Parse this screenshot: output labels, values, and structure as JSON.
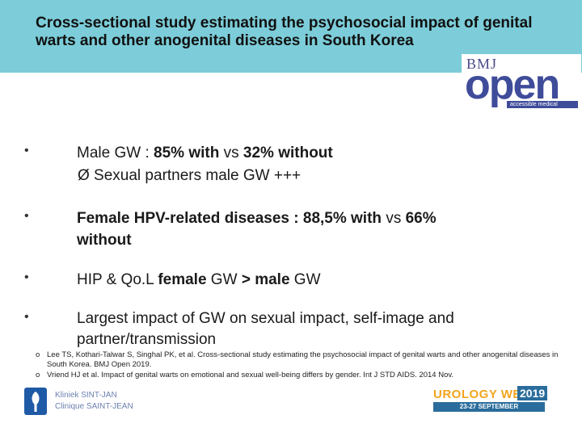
{
  "title": "Cross-sectional study estimating the psychosocial impact of genital\nwarts and other anogenital diseases in South Korea",
  "logo_bmj": {
    "top": "BMJ",
    "main": "open",
    "tagline": "accessible medical research"
  },
  "bullets": [
    {
      "pre": "Male GW : ",
      "b1": "85%",
      "mid1": " with ",
      "vs": "vs",
      "b2": " 32%",
      "mid2": " without",
      "tail": ""
    },
    {
      "sub": "Ø  Sexual partners male GW +++"
    },
    {
      "pre": "Female HPV-related diseases : ",
      "b1": "88,5%",
      "mid1": " with ",
      "vs": "vs",
      "b2": " 66%",
      "mid2": "",
      "line2": "without"
    },
    {
      "text_a": "HIP & Qo.L ",
      "bold_a": "female",
      "text_b": " GW ",
      "bold_b": ">",
      "text_c": " ",
      "bold_c": "male",
      "text_d": " GW"
    },
    {
      "line1": "Largest impact of GW on sexual impact, self-image and",
      "line2": "partner/transmission"
    }
  ],
  "bullet_symbol": "•",
  "references": [
    {
      "marker": "o",
      "text": "Lee TS, Kothari-Talwar S, Singhal PK, et al. Cross-sectional study estimating the psychosocial impact of genital warts and other anogenital diseases in South Korea. BMJ Open 2019."
    },
    {
      "marker": "o",
      "text": "Vriend HJ et al. Impact of genital warts on emotional and sexual well-being differs by gender. Int J STD AIDS. 2014 Nov."
    }
  ],
  "footer": {
    "clinic_line1": "Kliniek SINT-JAN",
    "clinic_line2": "Clinique SAINT-JEAN",
    "uro_word": "UROLOGY WEEK",
    "uro_year": "2019",
    "uro_dates": "23-27 SEPTEMBER"
  },
  "colors": {
    "title_bar": "#7ccdd9",
    "bmj_blue": "#3f4c9a",
    "uro_orange": "#f2a51e",
    "uro_blue": "#2a6d9c"
  }
}
